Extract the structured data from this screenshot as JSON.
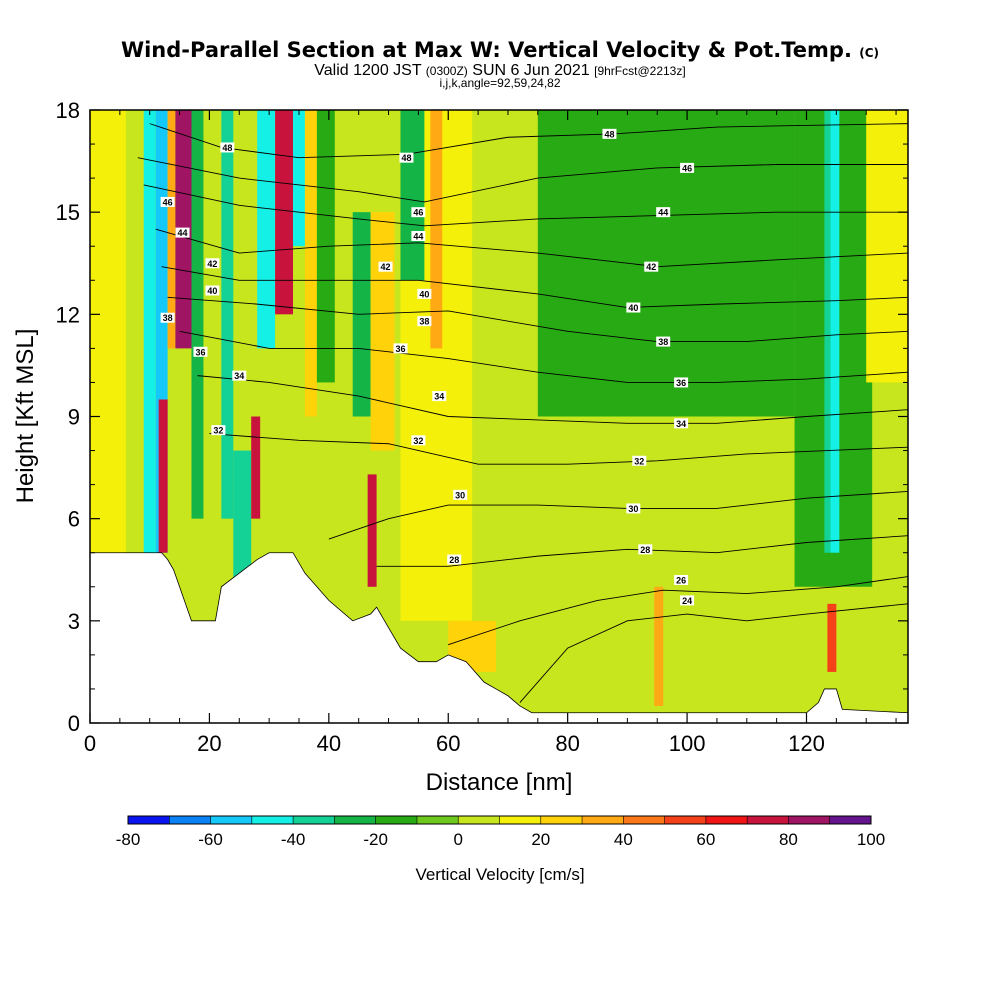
{
  "chart_data": {
    "type": "heatmap",
    "title": "Wind-Parallel Section at Max W: Vertical Velocity & Pot.Temp.",
    "title_mark": "(C)",
    "subtitle_main_a": "Valid 1200 JST",
    "subtitle_utc": "(0300Z)",
    "subtitle_main_b": "SUN 6 Jun 2021",
    "subtitle_fcst": "[9hrFcst@2213z]",
    "subtitle2": "i,j,k,angle=92,59,24,82",
    "xlabel": "Distance [nm]",
    "ylabel": "Height [Kft MSL]",
    "xlim": [
      0,
      137
    ],
    "ylim": [
      0,
      18
    ],
    "xticks": [
      0,
      20,
      40,
      60,
      80,
      100,
      120
    ],
    "yticks": [
      0,
      3,
      6,
      9,
      12,
      15,
      18
    ],
    "colorbar": {
      "label": "Vertical Velocity [cm/s]",
      "min": -80,
      "max": 100,
      "step": 10,
      "ticks": [
        -80,
        -60,
        -40,
        -20,
        0,
        20,
        40,
        60,
        80,
        100
      ],
      "colors": [
        "#0a14f0",
        "#0a82f5",
        "#14c8fa",
        "#14f0e6",
        "#14d296",
        "#14b446",
        "#28aa14",
        "#6ec81e",
        "#c8e61e",
        "#f5f00a",
        "#ffd20a",
        "#ffaa14",
        "#fa7819",
        "#f54119",
        "#f01414",
        "#c8143c",
        "#a01464",
        "#64148c"
      ]
    },
    "velocity_regions": [
      {
        "x0": 0,
        "x1": 137,
        "y0": 0,
        "y1": 18,
        "w": 3
      },
      {
        "x0": 0,
        "x1": 6,
        "y0": 5,
        "y1": 18,
        "w": 12
      },
      {
        "x0": 75,
        "x1": 118,
        "y0": 9,
        "y1": 18,
        "w": -13
      },
      {
        "x0": 88,
        "x1": 118,
        "y0": 13,
        "y1": 17.5,
        "w": -18
      },
      {
        "x0": 118,
        "x1": 131,
        "y0": 4,
        "y1": 18,
        "w": -14
      },
      {
        "x0": 70,
        "x1": 120,
        "y0": 0.3,
        "y1": 3,
        "w": 8
      },
      {
        "x0": 52,
        "x1": 64,
        "y0": 3,
        "y1": 18,
        "w": 15
      },
      {
        "x0": 9,
        "x1": 11,
        "y0": 5,
        "y1": 18,
        "w": -45
      },
      {
        "x0": 11,
        "x1": 13,
        "y0": 5,
        "y1": 18,
        "w": -60
      },
      {
        "x0": 13,
        "x1": 14.3,
        "y0": 11,
        "y1": 18,
        "w": 35
      },
      {
        "x0": 14.3,
        "x1": 17,
        "y0": 11,
        "y1": 18,
        "w": 80
      },
      {
        "x0": 17,
        "x1": 19,
        "y0": 6,
        "y1": 18,
        "w": -30
      },
      {
        "x0": 11.5,
        "x1": 13,
        "y0": 5,
        "y1": 9.5,
        "w": 70
      },
      {
        "x0": 22,
        "x1": 24,
        "y0": 6,
        "y1": 18,
        "w": -35
      },
      {
        "x0": 24,
        "x1": 27,
        "y0": 4,
        "y1": 8,
        "w": -40
      },
      {
        "x0": 27,
        "x1": 28.5,
        "y0": 6,
        "y1": 9,
        "w": 70
      },
      {
        "x0": 28,
        "x1": 31,
        "y0": 11,
        "y1": 18,
        "w": -45
      },
      {
        "x0": 31,
        "x1": 34,
        "y0": 12,
        "y1": 18,
        "w": 75
      },
      {
        "x0": 34,
        "x1": 36,
        "y0": 14,
        "y1": 18,
        "w": -50
      },
      {
        "x0": 36,
        "x1": 38,
        "y0": 9,
        "y1": 18,
        "w": 20
      },
      {
        "x0": 38,
        "x1": 41,
        "y0": 10,
        "y1": 18,
        "w": -20
      },
      {
        "x0": 44,
        "x1": 47,
        "y0": 9,
        "y1": 15,
        "w": -25
      },
      {
        "x0": 47,
        "x1": 51,
        "y0": 8,
        "y1": 15,
        "w": 25
      },
      {
        "x0": 46.5,
        "x1": 48,
        "y0": 4,
        "y1": 7.3,
        "w": 75
      },
      {
        "x0": 52,
        "x1": 56,
        "y0": 13,
        "y1": 18,
        "w": -30
      },
      {
        "x0": 57,
        "x1": 59,
        "y0": 11,
        "y1": 18,
        "w": 30
      },
      {
        "x0": 123,
        "x1": 124,
        "y0": 5,
        "y1": 18,
        "w": -35
      },
      {
        "x0": 124,
        "x1": 125.5,
        "y0": 5,
        "y1": 18,
        "w": -45
      },
      {
        "x0": 123.5,
        "x1": 125,
        "y0": 1.5,
        "y1": 3.5,
        "w": 50
      },
      {
        "x0": 94.5,
        "x1": 96,
        "y0": 0.5,
        "y1": 4,
        "w": 35
      },
      {
        "x0": 60,
        "x1": 68,
        "y0": 1.5,
        "y1": 3,
        "w": 20
      },
      {
        "x0": 130,
        "x1": 137,
        "y0": 10,
        "y1": 18,
        "w": 18
      }
    ],
    "terrain": [
      [
        0,
        5
      ],
      [
        12,
        5
      ],
      [
        13,
        4.8
      ],
      [
        14,
        4.5
      ],
      [
        15,
        4
      ],
      [
        17,
        3
      ],
      [
        21,
        3
      ],
      [
        22,
        4
      ],
      [
        28,
        4.8
      ],
      [
        30,
        5
      ],
      [
        34,
        5
      ],
      [
        36,
        4.4
      ],
      [
        40,
        3.6
      ],
      [
        44,
        3
      ],
      [
        47,
        3.2
      ],
      [
        48,
        3.4
      ],
      [
        52,
        2.2
      ],
      [
        55,
        1.8
      ],
      [
        58,
        1.8
      ],
      [
        60,
        2
      ],
      [
        63,
        1.8
      ],
      [
        66,
        1.2
      ],
      [
        68,
        1
      ],
      [
        70,
        0.8
      ],
      [
        72,
        0.5
      ],
      [
        74,
        0.3
      ],
      [
        120,
        0.3
      ],
      [
        122,
        0.6
      ],
      [
        123,
        1
      ],
      [
        125,
        1
      ],
      [
        126,
        0.4
      ],
      [
        137,
        0.3
      ]
    ],
    "theta_contours": [
      {
        "label": "24",
        "points": [
          [
            72,
            0.6
          ],
          [
            80,
            2.2
          ],
          [
            90,
            3.0
          ],
          [
            100,
            3.2
          ],
          [
            110,
            3.0
          ],
          [
            120,
            3.2
          ],
          [
            137,
            3.5
          ]
        ]
      },
      {
        "label": "26",
        "points": [
          [
            60,
            2.3
          ],
          [
            72,
            3.0
          ],
          [
            85,
            3.6
          ],
          [
            96,
            3.9
          ],
          [
            110,
            3.8
          ],
          [
            125,
            4.0
          ],
          [
            137,
            4.3
          ]
        ]
      },
      {
        "label": "28",
        "points": [
          [
            48,
            4.6
          ],
          [
            60,
            4.6
          ],
          [
            75,
            4.9
          ],
          [
            90,
            5.1
          ],
          [
            105,
            5.0
          ],
          [
            120,
            5.3
          ],
          [
            137,
            5.5
          ]
        ]
      },
      {
        "label": "30",
        "points": [
          [
            40,
            5.4
          ],
          [
            50,
            6.0
          ],
          [
            60,
            6.4
          ],
          [
            75,
            6.4
          ],
          [
            90,
            6.3
          ],
          [
            105,
            6.3
          ],
          [
            120,
            6.6
          ],
          [
            137,
            6.8
          ]
        ]
      },
      {
        "label": "32",
        "points": [
          [
            20,
            8.5
          ],
          [
            35,
            8.3
          ],
          [
            50,
            8.2
          ],
          [
            65,
            7.6
          ],
          [
            80,
            7.6
          ],
          [
            95,
            7.7
          ],
          [
            110,
            7.9
          ],
          [
            137,
            8.1
          ]
        ]
      },
      {
        "label": "34",
        "points": [
          [
            18,
            10.2
          ],
          [
            30,
            10.0
          ],
          [
            45,
            9.6
          ],
          [
            60,
            9.0
          ],
          [
            75,
            8.9
          ],
          [
            90,
            8.8
          ],
          [
            105,
            8.8
          ],
          [
            120,
            9.0
          ],
          [
            137,
            9.2
          ]
        ]
      },
      {
        "label": "36",
        "points": [
          [
            15,
            11.5
          ],
          [
            30,
            11.0
          ],
          [
            45,
            11.0
          ],
          [
            60,
            10.7
          ],
          [
            75,
            10.3
          ],
          [
            90,
            10.0
          ],
          [
            105,
            10.0
          ],
          [
            120,
            10.1
          ],
          [
            137,
            10.3
          ]
        ]
      },
      {
        "label": "38",
        "points": [
          [
            13,
            12.5
          ],
          [
            28,
            12.3
          ],
          [
            45,
            12.0
          ],
          [
            60,
            12.1
          ],
          [
            80,
            11.5
          ],
          [
            95,
            11.2
          ],
          [
            110,
            11.2
          ],
          [
            125,
            11.4
          ],
          [
            137,
            11.5
          ]
        ]
      },
      {
        "label": "40",
        "points": [
          [
            12,
            13.4
          ],
          [
            25,
            13.0
          ],
          [
            40,
            13.0
          ],
          [
            55,
            13.0
          ],
          [
            75,
            12.6
          ],
          [
            90,
            12.2
          ],
          [
            105,
            12.3
          ],
          [
            125,
            12.4
          ],
          [
            137,
            12.5
          ]
        ]
      },
      {
        "label": "42",
        "points": [
          [
            11,
            14.5
          ],
          [
            25,
            13.8
          ],
          [
            40,
            14.0
          ],
          [
            55,
            14.1
          ],
          [
            75,
            13.8
          ],
          [
            95,
            13.4
          ],
          [
            115,
            13.6
          ],
          [
            137,
            13.8
          ]
        ]
      },
      {
        "label": "44",
        "points": [
          [
            9,
            15.8
          ],
          [
            25,
            15.2
          ],
          [
            45,
            14.8
          ],
          [
            56,
            14.6
          ],
          [
            75,
            14.8
          ],
          [
            95,
            14.9
          ],
          [
            115,
            15.0
          ],
          [
            137,
            15.0
          ]
        ]
      },
      {
        "label": "46",
        "points": [
          [
            8,
            16.6
          ],
          [
            25,
            16.0
          ],
          [
            45,
            15.6
          ],
          [
            56,
            15.3
          ],
          [
            75,
            16.0
          ],
          [
            95,
            16.3
          ],
          [
            115,
            16.4
          ],
          [
            137,
            16.4
          ]
        ]
      },
      {
        "label": "48",
        "points": [
          [
            10,
            17.6
          ],
          [
            22,
            16.9
          ],
          [
            35,
            16.6
          ],
          [
            53,
            16.7
          ],
          [
            70,
            17.2
          ],
          [
            88,
            17.3
          ],
          [
            105,
            17.5
          ],
          [
            137,
            17.6
          ]
        ]
      }
    ],
    "contour_labels": [
      {
        "text": "48",
        "x": 23,
        "y": 16.9
      },
      {
        "text": "46",
        "x": 13,
        "y": 15.3
      },
      {
        "text": "44",
        "x": 15.5,
        "y": 14.4
      },
      {
        "text": "42",
        "x": 20.5,
        "y": 13.5
      },
      {
        "text": "40",
        "x": 20.5,
        "y": 12.7
      },
      {
        "text": "38",
        "x": 13,
        "y": 11.9
      },
      {
        "text": "36",
        "x": 18.5,
        "y": 10.9
      },
      {
        "text": "34",
        "x": 25,
        "y": 10.2
      },
      {
        "text": "32",
        "x": 21.5,
        "y": 8.6
      },
      {
        "text": "48",
        "x": 53,
        "y": 16.6
      },
      {
        "text": "46",
        "x": 55,
        "y": 15.0
      },
      {
        "text": "44",
        "x": 55,
        "y": 14.3
      },
      {
        "text": "42",
        "x": 49.5,
        "y": 13.4
      },
      {
        "text": "40",
        "x": 56,
        "y": 12.6
      },
      {
        "text": "38",
        "x": 56,
        "y": 11.8
      },
      {
        "text": "36",
        "x": 52,
        "y": 11.0
      },
      {
        "text": "34",
        "x": 58.5,
        "y": 9.6
      },
      {
        "text": "32",
        "x": 55,
        "y": 8.3
      },
      {
        "text": "30",
        "x": 62,
        "y": 6.7
      },
      {
        "text": "28",
        "x": 61,
        "y": 4.8
      },
      {
        "text": "48",
        "x": 87,
        "y": 17.3
      },
      {
        "text": "46",
        "x": 100,
        "y": 16.3
      },
      {
        "text": "44",
        "x": 96,
        "y": 15.0
      },
      {
        "text": "42",
        "x": 94,
        "y": 13.4
      },
      {
        "text": "40",
        "x": 91,
        "y": 12.2
      },
      {
        "text": "38",
        "x": 96,
        "y": 11.2
      },
      {
        "text": "36",
        "x": 99,
        "y": 10.0
      },
      {
        "text": "34",
        "x": 99,
        "y": 8.8
      },
      {
        "text": "32",
        "x": 92,
        "y": 7.7
      },
      {
        "text": "30",
        "x": 91,
        "y": 6.3
      },
      {
        "text": "28",
        "x": 93,
        "y": 5.1
      },
      {
        "text": "26",
        "x": 99,
        "y": 4.2
      },
      {
        "text": "24",
        "x": 100,
        "y": 3.6
      }
    ]
  }
}
